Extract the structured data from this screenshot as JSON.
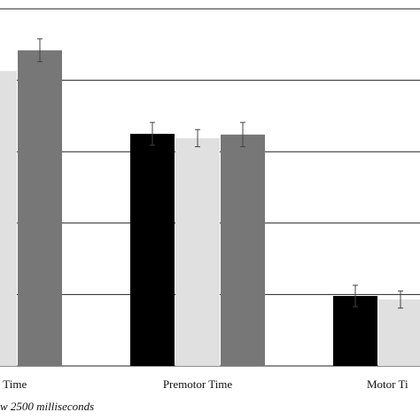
{
  "chart_data": {
    "type": "bar",
    "categories": [
      "n Time",
      "Premotor Time",
      "Motor Ti"
    ],
    "series": [
      {
        "color": "#000000",
        "values": [
          null,
          3.25,
          0.98
        ],
        "errors": [
          null,
          0.16,
          0.15
        ]
      },
      {
        "color": "#e0e0e0",
        "values": [
          4.13,
          3.19,
          0.93
        ],
        "errors": [
          null,
          0.12,
          0.12
        ]
      },
      {
        "color": "#777777",
        "values": [
          4.42,
          3.24,
          null
        ],
        "errors": [
          0.16,
          0.17,
          null
        ]
      }
    ],
    "ylim": [
      0,
      5
    ],
    "yticks": [
      0,
      1,
      2,
      3,
      4,
      5
    ],
    "grid": true,
    "footnote": "w 2500 milliseconds"
  }
}
